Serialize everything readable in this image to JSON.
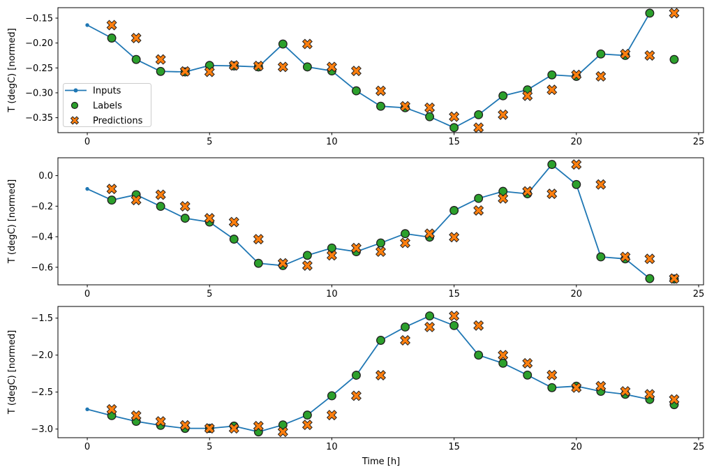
{
  "figure": {
    "xlabel": "Time [h]",
    "ylabel": "T (degC) [normed]"
  },
  "chart_data": {
    "type": "line",
    "title": "",
    "xlabel": "Time [h]",
    "ylabel": "T (degC) [normed]",
    "grid": false,
    "xlim": [
      -1.2,
      25.2
    ],
    "xticks": [
      0,
      5,
      10,
      15,
      20,
      25
    ],
    "xtick_labels": [
      "0",
      "5",
      "10",
      "15",
      "20",
      "25"
    ],
    "colors": {
      "inputs": "#1f77b4",
      "labels": "#2ca02c",
      "predictions": "#ff7f0e",
      "edge": "#1f1f1f",
      "legend_border": "#cccccc"
    },
    "legend": {
      "labels": [
        "Inputs",
        "Labels",
        "Predictions"
      ],
      "position": "center-left of first subplot"
    },
    "subplots": [
      {
        "ylim": [
          -0.38,
          -0.129
        ],
        "ytick_values": [
          -0.15,
          -0.2,
          -0.25,
          -0.3,
          -0.35
        ],
        "ytick_labels": [
          "−0.15",
          "−0.20",
          "−0.25",
          "−0.30",
          "−0.35"
        ],
        "inputs": {
          "x_start": 0,
          "y": [
            -0.164,
            -0.19,
            -0.233,
            -0.257,
            -0.258,
            -0.245,
            -0.246,
            -0.248,
            -0.202,
            -0.248,
            -0.256,
            -0.296,
            -0.327,
            -0.33,
            -0.348,
            -0.37,
            -0.344,
            -0.306,
            -0.294,
            -0.264,
            -0.267,
            -0.222,
            -0.225,
            -0.14
          ]
        },
        "labels": {
          "x_start": 1,
          "y": [
            -0.19,
            -0.233,
            -0.257,
            -0.258,
            -0.245,
            -0.246,
            -0.248,
            -0.202,
            -0.248,
            -0.256,
            -0.296,
            -0.327,
            -0.33,
            -0.348,
            -0.37,
            -0.344,
            -0.306,
            -0.294,
            -0.264,
            -0.267,
            -0.222,
            -0.225,
            -0.14,
            -0.233
          ]
        },
        "predictions": {
          "x_start": 1,
          "y": [
            -0.164,
            -0.19,
            -0.233,
            -0.257,
            -0.258,
            -0.245,
            -0.246,
            -0.248,
            -0.202,
            -0.248,
            -0.256,
            -0.296,
            -0.327,
            -0.33,
            -0.348,
            -0.37,
            -0.344,
            -0.306,
            -0.294,
            -0.264,
            -0.267,
            -0.222,
            -0.225,
            -0.14
          ]
        }
      },
      {
        "ylim": [
          -0.715,
          0.117
        ],
        "ytick_values": [
          0.0,
          -0.2,
          -0.4,
          -0.6
        ],
        "ytick_labels": [
          "0.0",
          "−0.2",
          "−0.4",
          "−0.6"
        ],
        "inputs": {
          "x_start": 0,
          "y": [
            -0.087,
            -0.16,
            -0.125,
            -0.201,
            -0.279,
            -0.304,
            -0.416,
            -0.574,
            -0.589,
            -0.522,
            -0.474,
            -0.498,
            -0.441,
            -0.38,
            -0.403,
            -0.228,
            -0.149,
            -0.103,
            -0.119,
            0.073,
            -0.058,
            -0.532,
            -0.545,
            -0.674
          ]
        },
        "labels": {
          "x_start": 1,
          "y": [
            -0.16,
            -0.125,
            -0.201,
            -0.279,
            -0.304,
            -0.416,
            -0.574,
            -0.589,
            -0.522,
            -0.474,
            -0.498,
            -0.441,
            -0.38,
            -0.403,
            -0.228,
            -0.149,
            -0.103,
            -0.119,
            0.073,
            -0.058,
            -0.532,
            -0.545,
            -0.674,
            -0.677
          ]
        },
        "predictions": {
          "x_start": 1,
          "y": [
            -0.087,
            -0.16,
            -0.125,
            -0.201,
            -0.279,
            -0.304,
            -0.416,
            -0.574,
            -0.589,
            -0.522,
            -0.474,
            -0.498,
            -0.441,
            -0.38,
            -0.403,
            -0.228,
            -0.149,
            -0.103,
            -0.119,
            0.073,
            -0.058,
            -0.532,
            -0.545,
            -0.674
          ]
        }
      },
      {
        "ylim": [
          -3.117,
          -1.342
        ],
        "ytick_values": [
          -1.5,
          -2.0,
          -2.5,
          -3.0
        ],
        "ytick_labels": [
          "−1.5",
          "−2.0",
          "−2.5",
          "−3.0"
        ],
        "inputs": {
          "x_start": 0,
          "y": [
            -2.733,
            -2.818,
            -2.896,
            -2.95,
            -2.991,
            -2.991,
            -2.96,
            -3.038,
            -2.944,
            -2.811,
            -2.55,
            -2.272,
            -1.8,
            -1.62,
            -1.47,
            -1.6,
            -2.0,
            -2.11,
            -2.27,
            -2.44,
            -2.42,
            -2.49,
            -2.53,
            -2.6
          ]
        },
        "labels": {
          "x_start": 1,
          "y": [
            -2.818,
            -2.896,
            -2.95,
            -2.991,
            -2.991,
            -2.96,
            -3.038,
            -2.944,
            -2.811,
            -2.55,
            -2.272,
            -1.8,
            -1.62,
            -1.47,
            -1.6,
            -2.0,
            -2.11,
            -2.27,
            -2.44,
            -2.42,
            -2.49,
            -2.53,
            -2.6,
            -2.67
          ]
        },
        "predictions": {
          "x_start": 1,
          "y": [
            -2.733,
            -2.818,
            -2.896,
            -2.95,
            -2.991,
            -2.991,
            -2.96,
            -3.038,
            -2.944,
            -2.811,
            -2.55,
            -2.272,
            -1.8,
            -1.62,
            -1.47,
            -1.6,
            -2.0,
            -2.11,
            -2.27,
            -2.44,
            -2.42,
            -2.49,
            -2.53,
            -2.6
          ]
        }
      }
    ]
  }
}
